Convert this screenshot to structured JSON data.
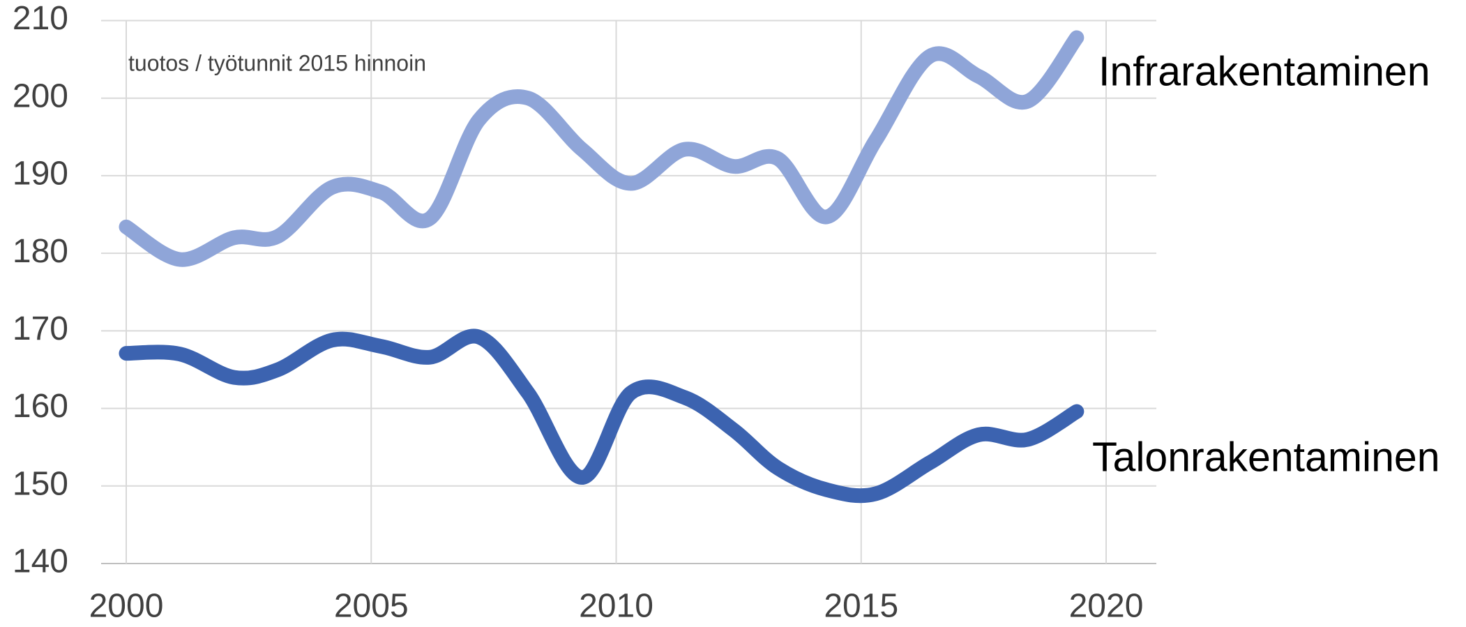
{
  "chart_data": {
    "type": "line",
    "annotation": "tuotos / työtunnit 2015 hinnoin",
    "x": [
      2000,
      2001.1,
      2002.2,
      2003.1,
      2004.2,
      2005.2,
      2006.2,
      2007.2,
      2008.2,
      2009.3,
      2010.3,
      2011.4,
      2012.4,
      2013.3,
      2014.3,
      2015.3,
      2016.4,
      2017.4,
      2018.4,
      2019.4
    ],
    "series": [
      {
        "name": "Infrarakentaminen",
        "color": "#8fa5d8",
        "values": [
          183.4,
          179.2,
          182,
          182.2,
          188.5,
          187.9,
          184.5,
          197.2,
          200,
          193.4,
          189,
          193.4,
          191.2,
          192.2,
          184.7,
          194.6,
          205.4,
          202.8,
          199.6,
          207.8
        ]
      },
      {
        "name": "Talonrakentaminen",
        "color": "#3c63b0",
        "values": [
          167.1,
          167,
          164,
          165,
          168.8,
          168,
          166.6,
          169.2,
          162,
          151.1,
          162,
          161.4,
          157.2,
          152.3,
          149.5,
          149,
          153,
          156.6,
          156,
          159.6
        ]
      }
    ],
    "xlim": [
      2000,
      2020
    ],
    "xticks": [
      2000,
      2005,
      2010,
      2015,
      2020
    ],
    "ylim": [
      140,
      210
    ],
    "yticks": [
      140,
      150,
      160,
      170,
      180,
      190,
      200,
      210
    ],
    "grid": true
  }
}
